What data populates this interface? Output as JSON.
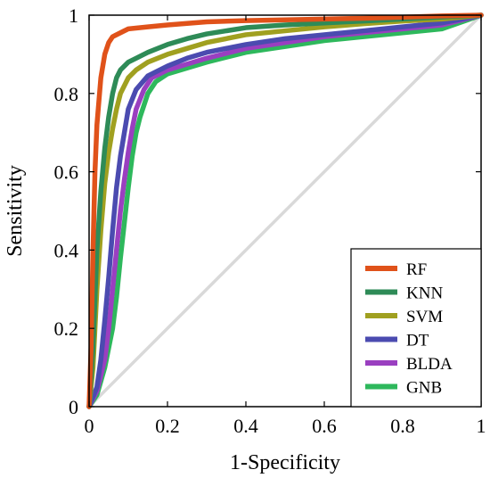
{
  "chart_data": {
    "type": "line",
    "title": "",
    "xlabel": "1-Specificity",
    "ylabel": "Sensitivity",
    "xlim": [
      0,
      1
    ],
    "ylim": [
      0,
      1
    ],
    "x_ticks": [
      "0",
      "0.2",
      "0.4",
      "0.6",
      "0.8",
      "1"
    ],
    "y_ticks": [
      "0",
      "0.2",
      "0.4",
      "0.6",
      "0.8",
      "1"
    ],
    "grid": false,
    "legend_position": "bottom-right",
    "reference_line": {
      "x": [
        0,
        1
      ],
      "y": [
        0,
        1
      ],
      "color": "#d9d9d9"
    },
    "series": [
      {
        "name": "RF",
        "color": "#e0521a",
        "x": [
          0,
          0.005,
          0.01,
          0.015,
          0.02,
          0.03,
          0.04,
          0.05,
          0.06,
          0.08,
          0.1,
          0.15,
          0.2,
          0.3,
          0.4,
          0.5,
          0.6,
          0.7,
          0.8,
          0.9,
          1
        ],
        "y": [
          0,
          0.15,
          0.4,
          0.6,
          0.72,
          0.84,
          0.9,
          0.93,
          0.945,
          0.955,
          0.965,
          0.97,
          0.975,
          0.983,
          0.986,
          0.988,
          0.99,
          0.992,
          0.995,
          0.998,
          1
        ]
      },
      {
        "name": "KNN",
        "color": "#2e8b57",
        "x": [
          0,
          0.01,
          0.02,
          0.03,
          0.04,
          0.05,
          0.06,
          0.07,
          0.08,
          0.1,
          0.12,
          0.15,
          0.2,
          0.25,
          0.3,
          0.4,
          0.5,
          0.6,
          0.7,
          0.8,
          0.9,
          1
        ],
        "y": [
          0,
          0.15,
          0.4,
          0.55,
          0.66,
          0.74,
          0.8,
          0.84,
          0.86,
          0.88,
          0.89,
          0.905,
          0.925,
          0.94,
          0.952,
          0.968,
          0.975,
          0.98,
          0.985,
          0.99,
          0.995,
          1
        ]
      },
      {
        "name": "SVM",
        "color": "#a0a020",
        "x": [
          0,
          0.01,
          0.02,
          0.03,
          0.04,
          0.05,
          0.06,
          0.07,
          0.08,
          0.1,
          0.12,
          0.15,
          0.2,
          0.25,
          0.3,
          0.4,
          0.5,
          0.6,
          0.7,
          0.8,
          0.9,
          1
        ],
        "y": [
          0,
          0.1,
          0.3,
          0.45,
          0.57,
          0.65,
          0.71,
          0.76,
          0.8,
          0.84,
          0.86,
          0.88,
          0.9,
          0.915,
          0.93,
          0.95,
          0.96,
          0.97,
          0.978,
          0.985,
          0.99,
          1
        ]
      },
      {
        "name": "DT",
        "color": "#4b4bb0",
        "x": [
          0,
          0.02,
          0.03,
          0.04,
          0.05,
          0.06,
          0.07,
          0.08,
          0.09,
          0.1,
          0.12,
          0.15,
          0.2,
          0.25,
          0.3,
          0.4,
          0.5,
          0.6,
          0.7,
          0.8,
          0.9,
          1
        ],
        "y": [
          0,
          0.05,
          0.12,
          0.22,
          0.33,
          0.45,
          0.56,
          0.64,
          0.7,
          0.76,
          0.81,
          0.845,
          0.87,
          0.89,
          0.905,
          0.925,
          0.94,
          0.95,
          0.96,
          0.97,
          0.98,
          1
        ]
      },
      {
        "name": "BLDA",
        "color": "#9a3fc0",
        "x": [
          0,
          0.02,
          0.04,
          0.05,
          0.06,
          0.07,
          0.08,
          0.09,
          0.1,
          0.11,
          0.12,
          0.14,
          0.16,
          0.2,
          0.3,
          0.4,
          0.5,
          0.6,
          0.7,
          0.8,
          0.9,
          1
        ],
        "y": [
          0,
          0.04,
          0.12,
          0.2,
          0.3,
          0.4,
          0.5,
          0.58,
          0.65,
          0.71,
          0.76,
          0.81,
          0.84,
          0.86,
          0.89,
          0.915,
          0.93,
          0.945,
          0.955,
          0.965,
          0.975,
          1
        ]
      },
      {
        "name": "GNB",
        "color": "#2eb85c",
        "x": [
          0,
          0.02,
          0.04,
          0.06,
          0.07,
          0.08,
          0.09,
          0.1,
          0.11,
          0.12,
          0.13,
          0.14,
          0.15,
          0.17,
          0.2,
          0.3,
          0.4,
          0.5,
          0.6,
          0.7,
          0.8,
          0.9,
          1
        ],
        "y": [
          0,
          0.03,
          0.1,
          0.2,
          0.28,
          0.38,
          0.47,
          0.56,
          0.64,
          0.7,
          0.74,
          0.77,
          0.8,
          0.83,
          0.85,
          0.88,
          0.905,
          0.92,
          0.935,
          0.945,
          0.955,
          0.965,
          1
        ]
      }
    ]
  }
}
